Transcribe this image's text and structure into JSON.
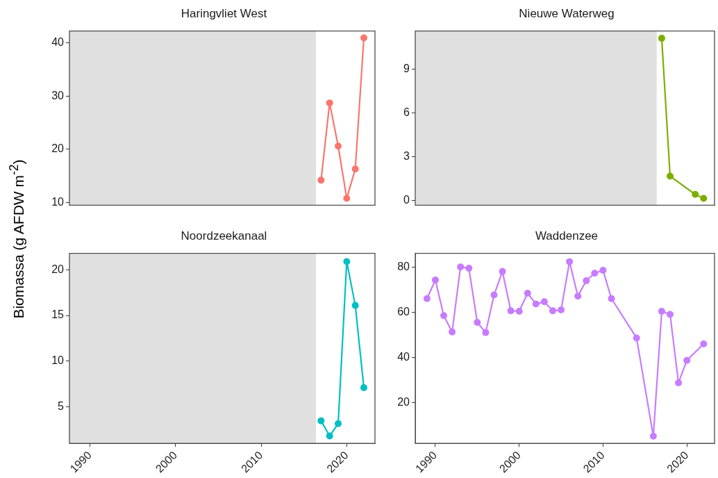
{
  "chart_data": [
    {
      "type": "line",
      "title": "Haringvliet West",
      "ylabel": "Biomassa (g AFDW m$^{-2}$)",
      "x": [
        2017,
        2018,
        2019,
        2020,
        2021,
        2022
      ],
      "series": [
        {
          "color": "#f8766d",
          "values": [
            14.2,
            28.7,
            20.6,
            10.8,
            16.3,
            40.9
          ]
        }
      ],
      "xlim": [
        1987.6,
        2023.3
      ],
      "xticks": [
        1990,
        2000,
        2010,
        2020
      ],
      "ylim": [
        9.5,
        42.2
      ],
      "yticks": [
        10,
        20,
        30,
        40
      ],
      "bands": [
        {
          "axis": "x",
          "from": 1987.6,
          "to": 2016.4,
          "color": "#e0e0e0"
        }
      ],
      "marker": "circle",
      "grid": false,
      "tick_labels": "y"
    },
    {
      "type": "line",
      "title": "Nieuwe Waterweg",
      "x": [
        2017,
        2018,
        2021,
        2022
      ],
      "series": [
        {
          "color": "#7cae00",
          "values": [
            11.1,
            1.67,
            0.42,
            0.15
          ]
        }
      ],
      "xlim": [
        1987.6,
        2023.3
      ],
      "xticks": [
        1990,
        2000,
        2010,
        2020
      ],
      "ylim": [
        -0.32,
        11.6
      ],
      "yticks": [
        0,
        3,
        6,
        9
      ],
      "bands": [
        {
          "axis": "x",
          "from": 1987.6,
          "to": 2016.4,
          "color": "#e0e0e0"
        }
      ],
      "marker": "circle",
      "grid": false,
      "tick_labels": "y"
    },
    {
      "type": "line",
      "title": "Noordzeekanaal",
      "x": [
        2017,
        2018,
        2019,
        2020,
        2021,
        2022
      ],
      "series": [
        {
          "color": "#00bfc4",
          "values": [
            3.48,
            1.82,
            3.16,
            20.9,
            16.1,
            7.1
          ]
        }
      ],
      "xlim": [
        1987.6,
        2023.3
      ],
      "xticks": [
        1990,
        2000,
        2010,
        2020
      ],
      "ylim": [
        1.0,
        21.8
      ],
      "yticks": [
        5,
        10,
        15,
        20
      ],
      "bands": [
        {
          "axis": "x",
          "from": 1987.6,
          "to": 2016.4,
          "color": "#e0e0e0"
        }
      ],
      "marker": "circle",
      "grid": false
    },
    {
      "type": "line",
      "title": "Waddenzee",
      "x": [
        1989,
        1990,
        1991,
        1992,
        1993,
        1994,
        1995,
        1996,
        1997,
        1998,
        1999,
        2000,
        2001,
        2002,
        2003,
        2004,
        2005,
        2006,
        2007,
        2008,
        2009,
        2010,
        2011,
        2014,
        2016,
        2017,
        2018,
        2019,
        2020,
        2022
      ],
      "series": [
        {
          "color": "#c77cff",
          "values": [
            66,
            74.2,
            58.5,
            51.3,
            80,
            79.4,
            55.5,
            51,
            67.6,
            78,
            60.6,
            60.4,
            68.4,
            63.6,
            64.6,
            60.6,
            61,
            82.3,
            67.1,
            73.9,
            77.2,
            78.5,
            66,
            48.6,
            5.2,
            60.4,
            59,
            28.8,
            38.7,
            46
          ]
        }
      ],
      "xlim": [
        1987.6,
        2023.3
      ],
      "xticks": [
        1990,
        2000,
        2010,
        2020
      ],
      "ylim": [
        2,
        86
      ],
      "yticks": [
        20,
        40,
        60,
        80
      ],
      "marker": "circle",
      "grid": false
    }
  ]
}
